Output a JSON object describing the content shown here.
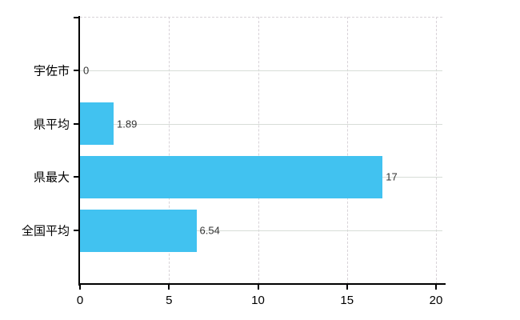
{
  "chart_data": {
    "type": "bar",
    "orientation": "horizontal",
    "title": "",
    "xlabel": "",
    "ylabel": "",
    "categories": [
      "宇佐市",
      "県平均",
      "県最大",
      "全国平均"
    ],
    "values": [
      0,
      1.89,
      17,
      6.54
    ],
    "value_labels": [
      "0",
      "1.89",
      "17",
      "6.54"
    ],
    "xlim": [
      0,
      20
    ],
    "x_ticks": [
      0,
      5,
      10,
      15,
      20
    ],
    "x_tick_labels": [
      "0",
      "5",
      "10",
      "15",
      "20"
    ],
    "grid": true,
    "legend": false,
    "bar_color": "#41c2f0",
    "axis_color": "#000000",
    "horizontal_gridline_color": "#d7ddd7",
    "vertical_gridline_color": "#d8d3d8",
    "category_label_color": "#000000",
    "tick_label_color": "#000000",
    "value_label_color": "#333333",
    "background_color": "#ffffff"
  }
}
